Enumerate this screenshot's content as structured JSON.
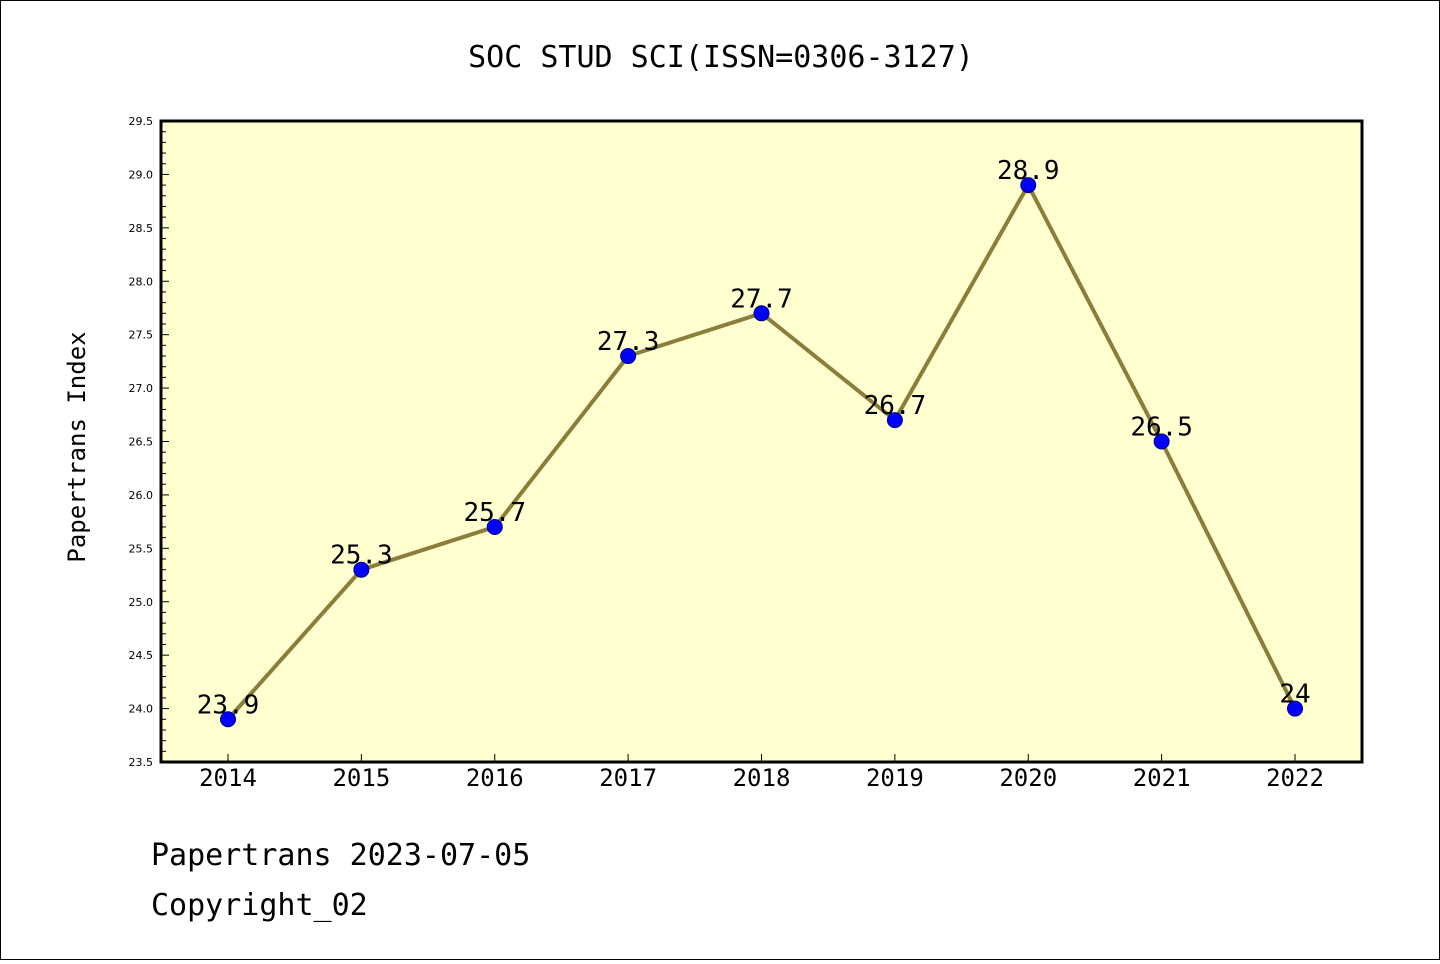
{
  "chart_data": {
    "type": "line",
    "title": "SOC STUD SCI(ISSN=0306-3127)",
    "xlabel": "",
    "ylabel": "Papertrans Index",
    "categories": [
      "2014",
      "2015",
      "2016",
      "2017",
      "2018",
      "2019",
      "2020",
      "2021",
      "2022"
    ],
    "values": [
      23.9,
      25.3,
      25.7,
      27.3,
      27.7,
      26.7,
      28.9,
      26.5,
      24
    ],
    "data_labels": [
      "23.9",
      "25.3",
      "25.7",
      "27.3",
      "27.7",
      "26.7",
      "28.9",
      "26.5",
      "24"
    ],
    "ylim": [
      23.5,
      29.5
    ],
    "yticks": [
      "23.5",
      "24.0",
      "24.5",
      "25.0",
      "25.5",
      "26.0",
      "26.5",
      "27.0",
      "27.5",
      "28.0",
      "28.5",
      "29.0",
      "29.5"
    ],
    "grid": false,
    "legend": "none",
    "colors": {
      "plot_background": "#ffffd0",
      "line": "#8b7d3a",
      "marker": "#0000ff",
      "axis": "#000000"
    }
  },
  "footer": {
    "line1": "Papertrans 2023-07-05",
    "line2": "Copyright_02"
  }
}
